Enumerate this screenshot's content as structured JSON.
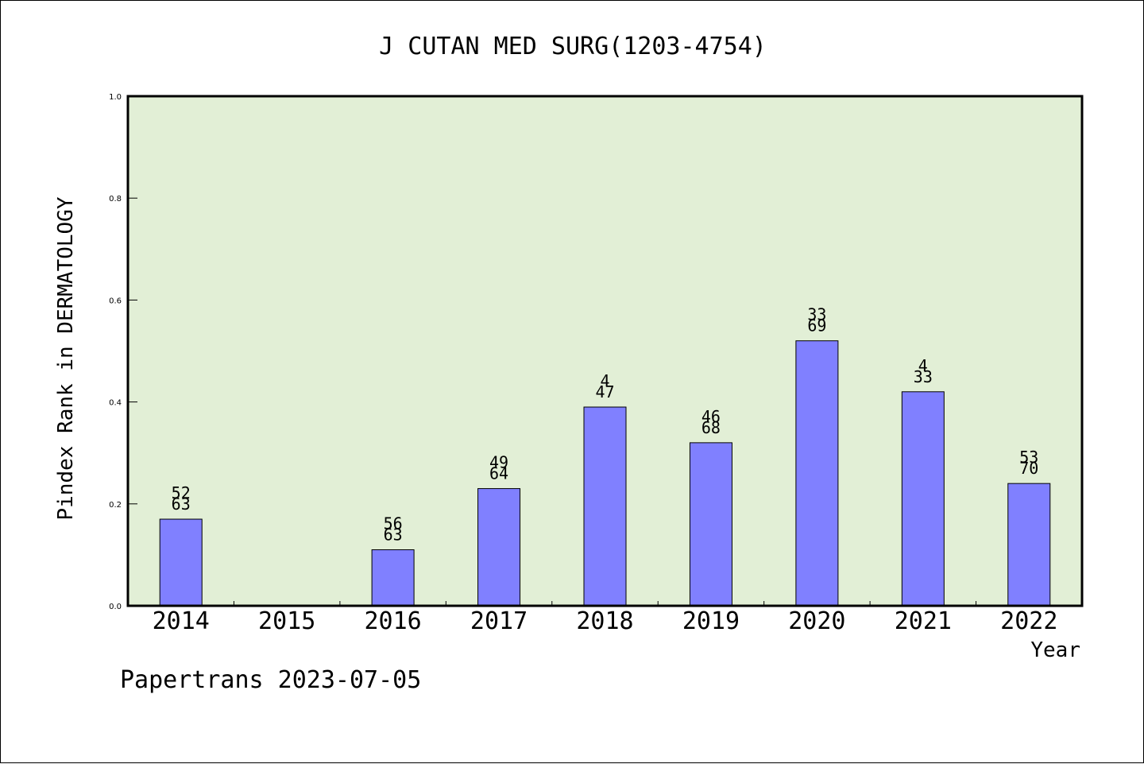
{
  "chart_data": {
    "type": "bar",
    "title": "J CUTAN MED SURG(1203-4754)",
    "xlabel": "Year",
    "ylabel": "Pindex Rank in DERMATOLOGY",
    "ylim": [
      0,
      1.0
    ],
    "yticks": [
      "0.0",
      "0.2",
      "0.4",
      "0.6",
      "0.8",
      "1.0"
    ],
    "categories": [
      "2014",
      "2015",
      "2016",
      "2017",
      "2018",
      "2019",
      "2020",
      "2021",
      "2022"
    ],
    "values": [
      0.17,
      null,
      0.11,
      0.23,
      0.39,
      0.32,
      0.52,
      0.42,
      0.24
    ],
    "label_top": [
      "52",
      "",
      "56",
      "49",
      "4",
      "46",
      "33",
      "4",
      "53"
    ],
    "label_bottom": [
      "63",
      "",
      "63",
      "64",
      "47",
      "68",
      "69",
      "33",
      "70"
    ],
    "grid": false,
    "legend": "none",
    "colors": {
      "plot_background": "#e2efd6",
      "bar_fill": "#8080ff",
      "bar_stroke": "#000000"
    }
  },
  "footer": "Papertrans 2023-07-05"
}
